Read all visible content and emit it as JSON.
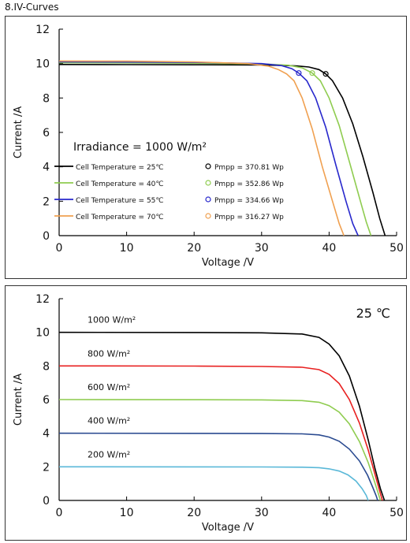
{
  "page": {
    "heading": "8.IV-Curves"
  },
  "chart_data": [
    {
      "type": "line",
      "title": "Irradiance = 1000 W/m²",
      "xlabel": "Voltage /V",
      "ylabel": "Current /A",
      "xlim": [
        0,
        50
      ],
      "ylim": [
        0,
        12
      ],
      "xticks": [
        0,
        10,
        20,
        30,
        40,
        50
      ],
      "yticks": [
        0,
        2,
        4,
        6,
        8,
        10,
        12
      ],
      "grid": false,
      "legend": "lower-left",
      "series": [
        {
          "name": "Cell Temperature = 25℃",
          "pmpp_label": "Pmpp = 370.81 Wp",
          "color": "#000000",
          "pmpp_point": [
            39.5,
            9.4
          ],
          "points": [
            [
              0,
              9.95
            ],
            [
              10,
              9.94
            ],
            [
              20,
              9.93
            ],
            [
              30,
              9.92
            ],
            [
              35,
              9.87
            ],
            [
              37,
              9.8
            ],
            [
              38.5,
              9.65
            ],
            [
              39.5,
              9.4
            ],
            [
              40.5,
              9.0
            ],
            [
              42,
              8.0
            ],
            [
              43.5,
              6.5
            ],
            [
              45,
              4.6
            ],
            [
              46.5,
              2.5
            ],
            [
              47.5,
              1.0
            ],
            [
              48.3,
              0
            ]
          ]
        },
        {
          "name": "Cell Temperature = 40℃",
          "pmpp_label": "Pmpp = 352.86 Wp",
          "color": "#8fcc50",
          "pmpp_point": [
            37.5,
            9.45
          ],
          "points": [
            [
              0,
              10.05
            ],
            [
              10,
              10.04
            ],
            [
              20,
              10.02
            ],
            [
              30,
              9.98
            ],
            [
              34,
              9.9
            ],
            [
              36,
              9.75
            ],
            [
              37.5,
              9.45
            ],
            [
              38.7,
              9.0
            ],
            [
              40,
              8.0
            ],
            [
              41.5,
              6.4
            ],
            [
              43,
              4.3
            ],
            [
              44.5,
              2.2
            ],
            [
              45.5,
              0.8
            ],
            [
              46.2,
              0
            ]
          ]
        },
        {
          "name": "Cell Temperature = 55℃",
          "pmpp_label": "Pmpp = 334.66 Wp",
          "color": "#2828cc",
          "pmpp_point": [
            35.5,
            9.45
          ],
          "points": [
            [
              0,
              10.1
            ],
            [
              10,
              10.09
            ],
            [
              20,
              10.07
            ],
            [
              30,
              10.0
            ],
            [
              33,
              9.88
            ],
            [
              34.5,
              9.7
            ],
            [
              35.5,
              9.45
            ],
            [
              36.7,
              9.0
            ],
            [
              38,
              8.0
            ],
            [
              39.5,
              6.3
            ],
            [
              41,
              4.1
            ],
            [
              42.5,
              2.0
            ],
            [
              43.5,
              0.7
            ],
            [
              44.3,
              0
            ]
          ]
        },
        {
          "name": "Cell Temperature = 70℃",
          "pmpp_label": "Pmpp = 316.27 Wp",
          "color": "#f0a050",
          "pmpp_point": null,
          "points": [
            [
              0,
              10.15
            ],
            [
              10,
              10.14
            ],
            [
              20,
              10.1
            ],
            [
              28,
              10.0
            ],
            [
              31,
              9.85
            ],
            [
              32.5,
              9.65
            ],
            [
              33.7,
              9.4
            ],
            [
              34.8,
              9.0
            ],
            [
              36,
              8.0
            ],
            [
              37.5,
              6.2
            ],
            [
              39,
              4.0
            ],
            [
              40.5,
              2.0
            ],
            [
              41.5,
              0.7
            ],
            [
              42.2,
              0
            ]
          ]
        }
      ]
    },
    {
      "type": "line",
      "annotation": "25 ℃",
      "xlabel": "Voltage /V",
      "ylabel": "Current /A",
      "xlim": [
        0,
        50
      ],
      "ylim": [
        0,
        12
      ],
      "xticks": [
        0,
        10,
        20,
        30,
        40,
        50
      ],
      "yticks": [
        0,
        2,
        4,
        6,
        8,
        10,
        12
      ],
      "grid": false,
      "series": [
        {
          "name": "1000 W/m²",
          "color": "#000000",
          "points": [
            [
              0,
              10.0
            ],
            [
              20,
              9.99
            ],
            [
              30,
              9.97
            ],
            [
              36,
              9.9
            ],
            [
              38.5,
              9.7
            ],
            [
              40,
              9.3
            ],
            [
              41.5,
              8.6
            ],
            [
              43,
              7.4
            ],
            [
              44.5,
              5.6
            ],
            [
              45.8,
              3.6
            ],
            [
              46.8,
              1.9
            ],
            [
              47.6,
              0.7
            ],
            [
              48.2,
              0
            ]
          ]
        },
        {
          "name": "800 W/m²",
          "color": "#e82020",
          "points": [
            [
              0,
              8.0
            ],
            [
              20,
              7.99
            ],
            [
              30,
              7.97
            ],
            [
              36,
              7.92
            ],
            [
              38.5,
              7.78
            ],
            [
              40,
              7.5
            ],
            [
              41.5,
              6.95
            ],
            [
              43,
              6.0
            ],
            [
              44.5,
              4.6
            ],
            [
              45.8,
              3.0
            ],
            [
              46.8,
              1.55
            ],
            [
              47.5,
              0.55
            ],
            [
              47.9,
              0
            ]
          ]
        },
        {
          "name": "600 W/m²",
          "color": "#8fcc50",
          "points": [
            [
              0,
              6.0
            ],
            [
              20,
              5.99
            ],
            [
              30,
              5.98
            ],
            [
              36,
              5.94
            ],
            [
              38.5,
              5.84
            ],
            [
              40,
              5.64
            ],
            [
              41.5,
              5.25
            ],
            [
              43,
              4.55
            ],
            [
              44.5,
              3.5
            ],
            [
              45.8,
              2.25
            ],
            [
              46.7,
              1.15
            ],
            [
              47.3,
              0.4
            ],
            [
              47.6,
              0
            ]
          ]
        },
        {
          "name": "400 W/m²",
          "color": "#2a4a90",
          "points": [
            [
              0,
              4.0
            ],
            [
              20,
              3.99
            ],
            [
              30,
              3.98
            ],
            [
              36,
              3.96
            ],
            [
              38.5,
              3.9
            ],
            [
              40,
              3.77
            ],
            [
              41.5,
              3.52
            ],
            [
              43,
              3.05
            ],
            [
              44.5,
              2.35
            ],
            [
              45.7,
              1.5
            ],
            [
              46.5,
              0.75
            ],
            [
              47.0,
              0.25
            ],
            [
              47.2,
              0
            ]
          ]
        },
        {
          "name": "200 W/m²",
          "color": "#5ab8d8",
          "points": [
            [
              0,
              2.0
            ],
            [
              20,
              1.995
            ],
            [
              30,
              1.99
            ],
            [
              36,
              1.98
            ],
            [
              38.5,
              1.95
            ],
            [
              40,
              1.88
            ],
            [
              41.5,
              1.75
            ],
            [
              42.8,
              1.52
            ],
            [
              44,
              1.15
            ],
            [
              44.9,
              0.7
            ],
            [
              45.5,
              0.3
            ],
            [
              45.8,
              0
            ]
          ]
        }
      ]
    }
  ]
}
